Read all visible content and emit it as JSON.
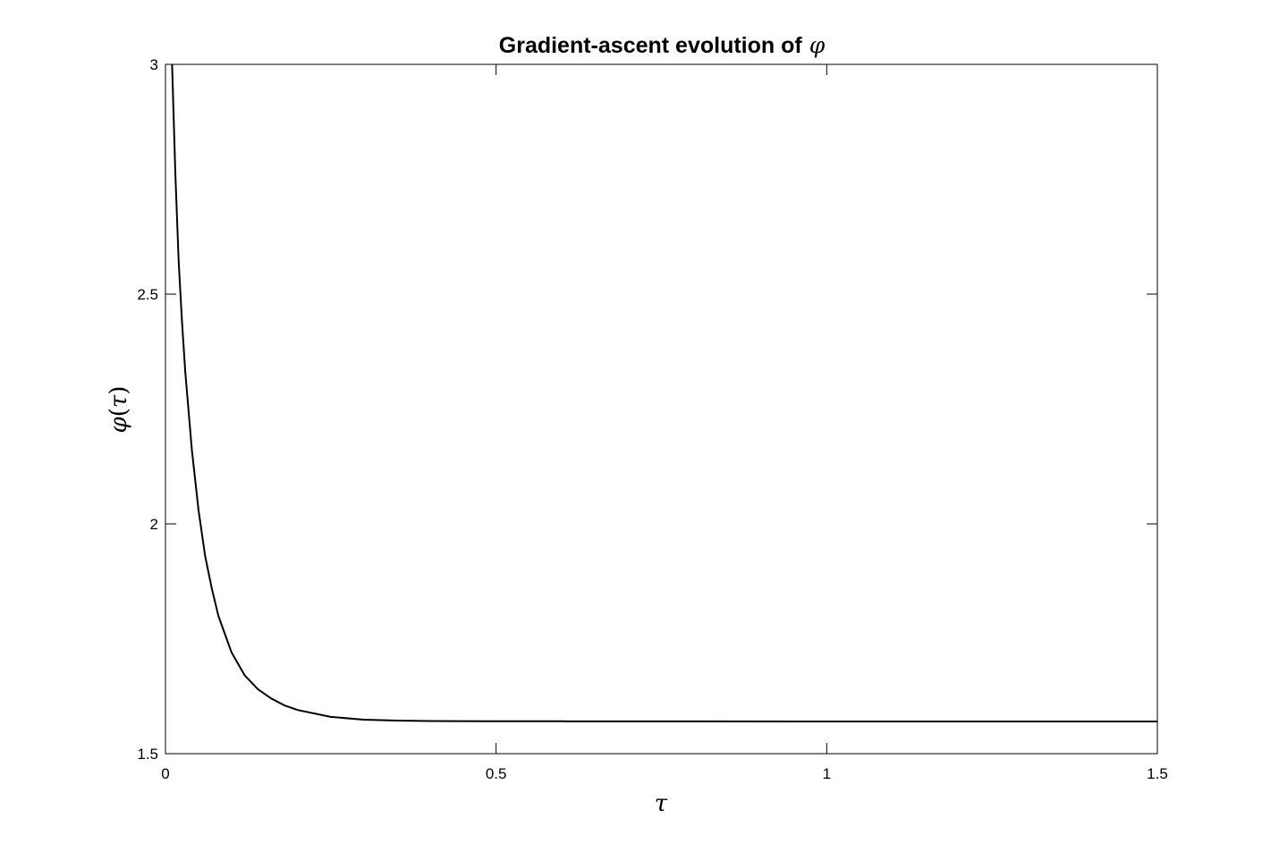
{
  "chart_data": {
    "type": "line",
    "title": "Gradient-ascent evolution of",
    "title_symbol": "φ",
    "xlabel": "τ",
    "ylabel_symbol": "φ",
    "ylabel_arg": "τ",
    "xlim": [
      0,
      1.5
    ],
    "ylim": [
      1.5,
      3
    ],
    "xticks": [
      0,
      0.5,
      1,
      1.5
    ],
    "xtick_labels": [
      "0",
      "0.5",
      "1",
      "1.5"
    ],
    "yticks": [
      1.5,
      2,
      2.5,
      3
    ],
    "ytick_labels": [
      "1.5",
      "2",
      "2.5",
      "3"
    ],
    "grid": false,
    "legend": "none",
    "line_color": "#000000",
    "series": [
      {
        "x": [
          0.01,
          0.015,
          0.02,
          0.025,
          0.03,
          0.04,
          0.05,
          0.06,
          0.07,
          0.08,
          0.09,
          0.1,
          0.12,
          0.14,
          0.16,
          0.18,
          0.2,
          0.25,
          0.3,
          0.35,
          0.4,
          0.5,
          0.6,
          0.7,
          0.8,
          1.0,
          1.2,
          1.5
        ],
        "y": [
          3.0,
          2.76,
          2.57,
          2.44,
          2.33,
          2.16,
          2.03,
          1.93,
          1.86,
          1.8,
          1.76,
          1.72,
          1.67,
          1.64,
          1.62,
          1.605,
          1.595,
          1.58,
          1.574,
          1.572,
          1.571,
          1.5705,
          1.5704,
          1.5703,
          1.5702,
          1.5701,
          1.57,
          1.57
        ]
      }
    ]
  }
}
